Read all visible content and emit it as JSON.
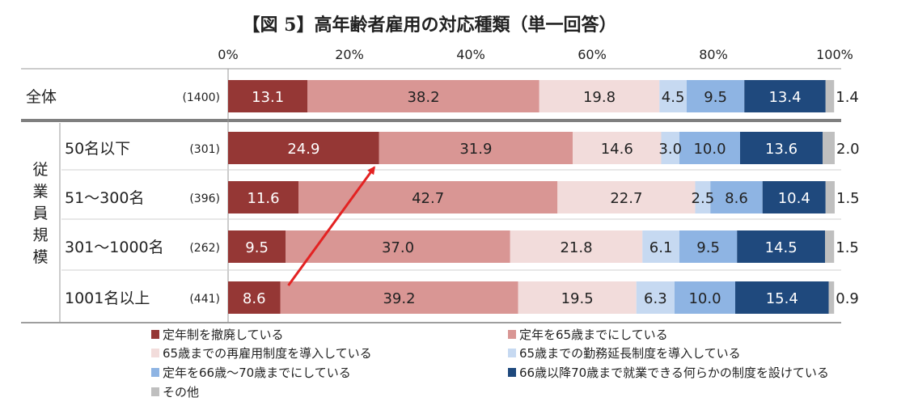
{
  "chart_data": {
    "type": "bar",
    "orientation": "horizontal",
    "stacked": true,
    "title": "【図 5】高年齢者雇用の対応種類（単一回答）",
    "axis_ticks": [
      "0%",
      "20%",
      "40%",
      "60%",
      "80%",
      "100%"
    ],
    "xlim": [
      0,
      100
    ],
    "group_label": "従業員規模",
    "rows": [
      {
        "label": "全体",
        "n": "(1400)"
      },
      {
        "label": "50名以下",
        "n": "(301)"
      },
      {
        "label": "51～300名",
        "n": "(396)"
      },
      {
        "label": "301～1000名",
        "n": "(262)"
      },
      {
        "label": "1001名以上",
        "n": "(441)"
      }
    ],
    "series": [
      {
        "name": "定年制を撤廃している",
        "color": "#953735",
        "values": [
          13.1,
          24.9,
          11.6,
          9.5,
          8.6
        ],
        "labels": [
          "13.1",
          "24.9",
          "11.6",
          "9.5",
          "8.6"
        ],
        "label_color": "#ffffff"
      },
      {
        "name": "定年を65歳までにしている",
        "color": "#d99694",
        "values": [
          38.2,
          31.9,
          42.7,
          37.0,
          39.2
        ],
        "labels": [
          "38.2",
          "31.9",
          "42.7",
          "37.0",
          "39.2"
        ],
        "label_color": "#222222"
      },
      {
        "name": "65歳までの再雇用制度を導入している",
        "color": "#f2dcdb",
        "values": [
          19.8,
          14.6,
          22.7,
          21.8,
          19.5
        ],
        "labels": [
          "19.8",
          "14.6",
          "22.7",
          "21.8",
          "19.5"
        ],
        "label_color": "#222222"
      },
      {
        "name": "65歳までの勤務延長制度を導入している",
        "color": "#c6d9f1",
        "values": [
          4.5,
          3.0,
          2.5,
          6.1,
          6.3
        ],
        "labels": [
          "4.5",
          "3.0",
          "2.5",
          "6.1",
          "6.3"
        ],
        "label_color": "#222222"
      },
      {
        "name": "定年を66歳～70歳までにしている",
        "color": "#8eb4e3",
        "values": [
          9.5,
          10.0,
          8.6,
          9.5,
          10.0
        ],
        "labels": [
          "9.5",
          "10.0",
          "8.6",
          "9.5",
          "10.0"
        ],
        "label_color": "#222222"
      },
      {
        "name": "66歳以降70歳まで就業できる何らかの制度を設けている",
        "color": "#1f497d",
        "values": [
          13.4,
          13.6,
          10.4,
          14.5,
          15.4
        ],
        "labels": [
          "13.4",
          "13.6",
          "10.4",
          "14.5",
          "15.4"
        ],
        "label_color": "#ffffff"
      },
      {
        "name": "その他",
        "color": "#bfbfbf",
        "values": [
          1.4,
          2.0,
          1.5,
          1.5,
          0.9
        ],
        "labels": [
          "1.4",
          "2.0",
          "1.5",
          "1.5",
          "0.9"
        ],
        "label_color": "#222222"
      }
    ],
    "annotation": {
      "type": "arrow",
      "from": {
        "row": 4,
        "value": 8.6
      },
      "to": {
        "row": 1,
        "value": 24.9
      },
      "color": "#e32222"
    }
  }
}
